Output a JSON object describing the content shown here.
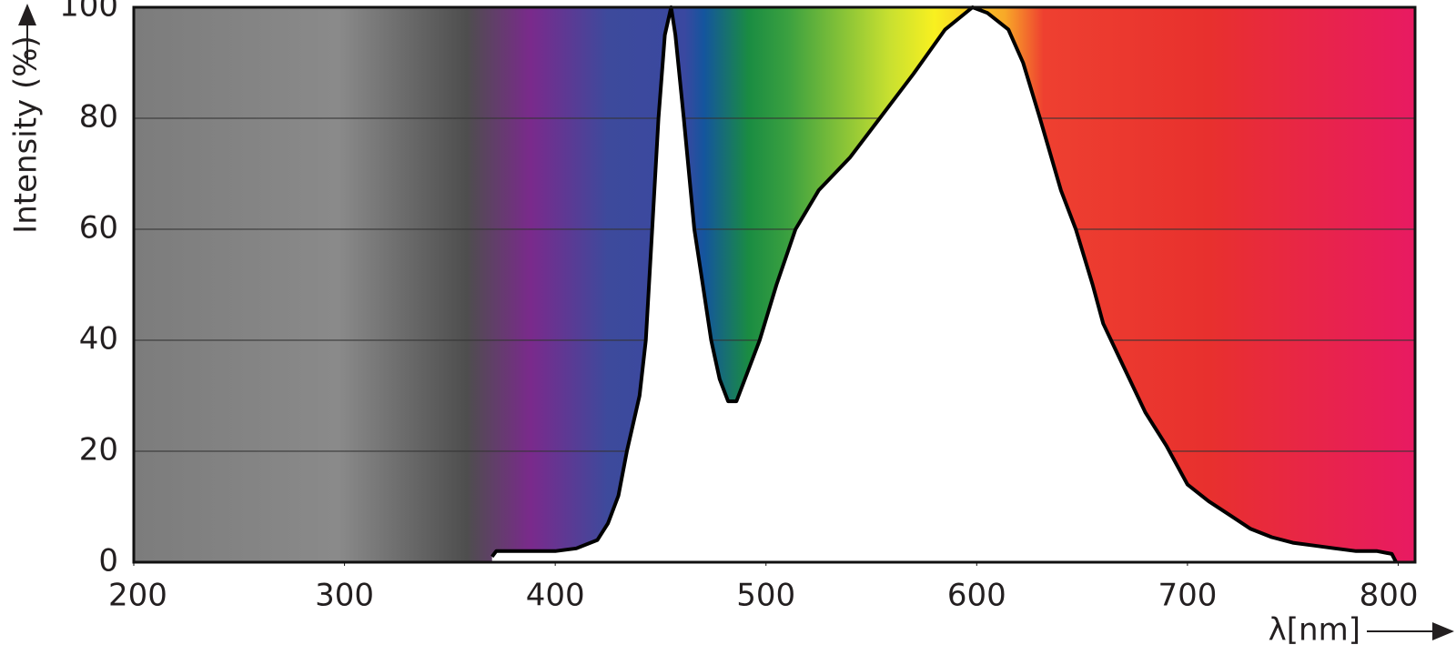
{
  "chart_data": {
    "type": "area",
    "x_label": "λ[nm]",
    "y_label": "Intensity (%)",
    "x": [
      370,
      372,
      380,
      390,
      400,
      410,
      420,
      425,
      430,
      434,
      440,
      443,
      446,
      449,
      452,
      455,
      457,
      461,
      466,
      470,
      474,
      478,
      482,
      486,
      490,
      497,
      505,
      514,
      525,
      540,
      554,
      570,
      585,
      598,
      605,
      615,
      622,
      630,
      640,
      647,
      655,
      660,
      670,
      680,
      690,
      700,
      710,
      720,
      730,
      740,
      750,
      760,
      770,
      780,
      790,
      797,
      799
    ],
    "values": [
      1,
      2,
      2,
      2,
      2,
      2.5,
      4,
      7,
      12,
      20,
      30,
      40,
      60,
      80,
      95,
      100,
      95,
      80,
      60,
      50,
      40,
      33,
      29,
      29,
      33,
      40,
      50,
      60,
      67,
      73,
      80,
      88,
      96,
      100,
      99,
      96,
      90,
      80,
      67,
      60,
      50,
      43,
      35,
      27,
      21,
      14,
      11,
      8.5,
      6,
      4.5,
      3.5,
      3,
      2.5,
      2,
      2,
      1.5,
      0
    ],
    "color": "#000000",
    "fill": "#ffffff",
    "xlim": [
      200,
      808
    ],
    "ylim": [
      0,
      100
    ],
    "xticks": [
      200,
      300,
      400,
      500,
      600,
      700,
      800
    ],
    "yticks": [
      0,
      20,
      40,
      60,
      80,
      100
    ],
    "grid": true
  }
}
